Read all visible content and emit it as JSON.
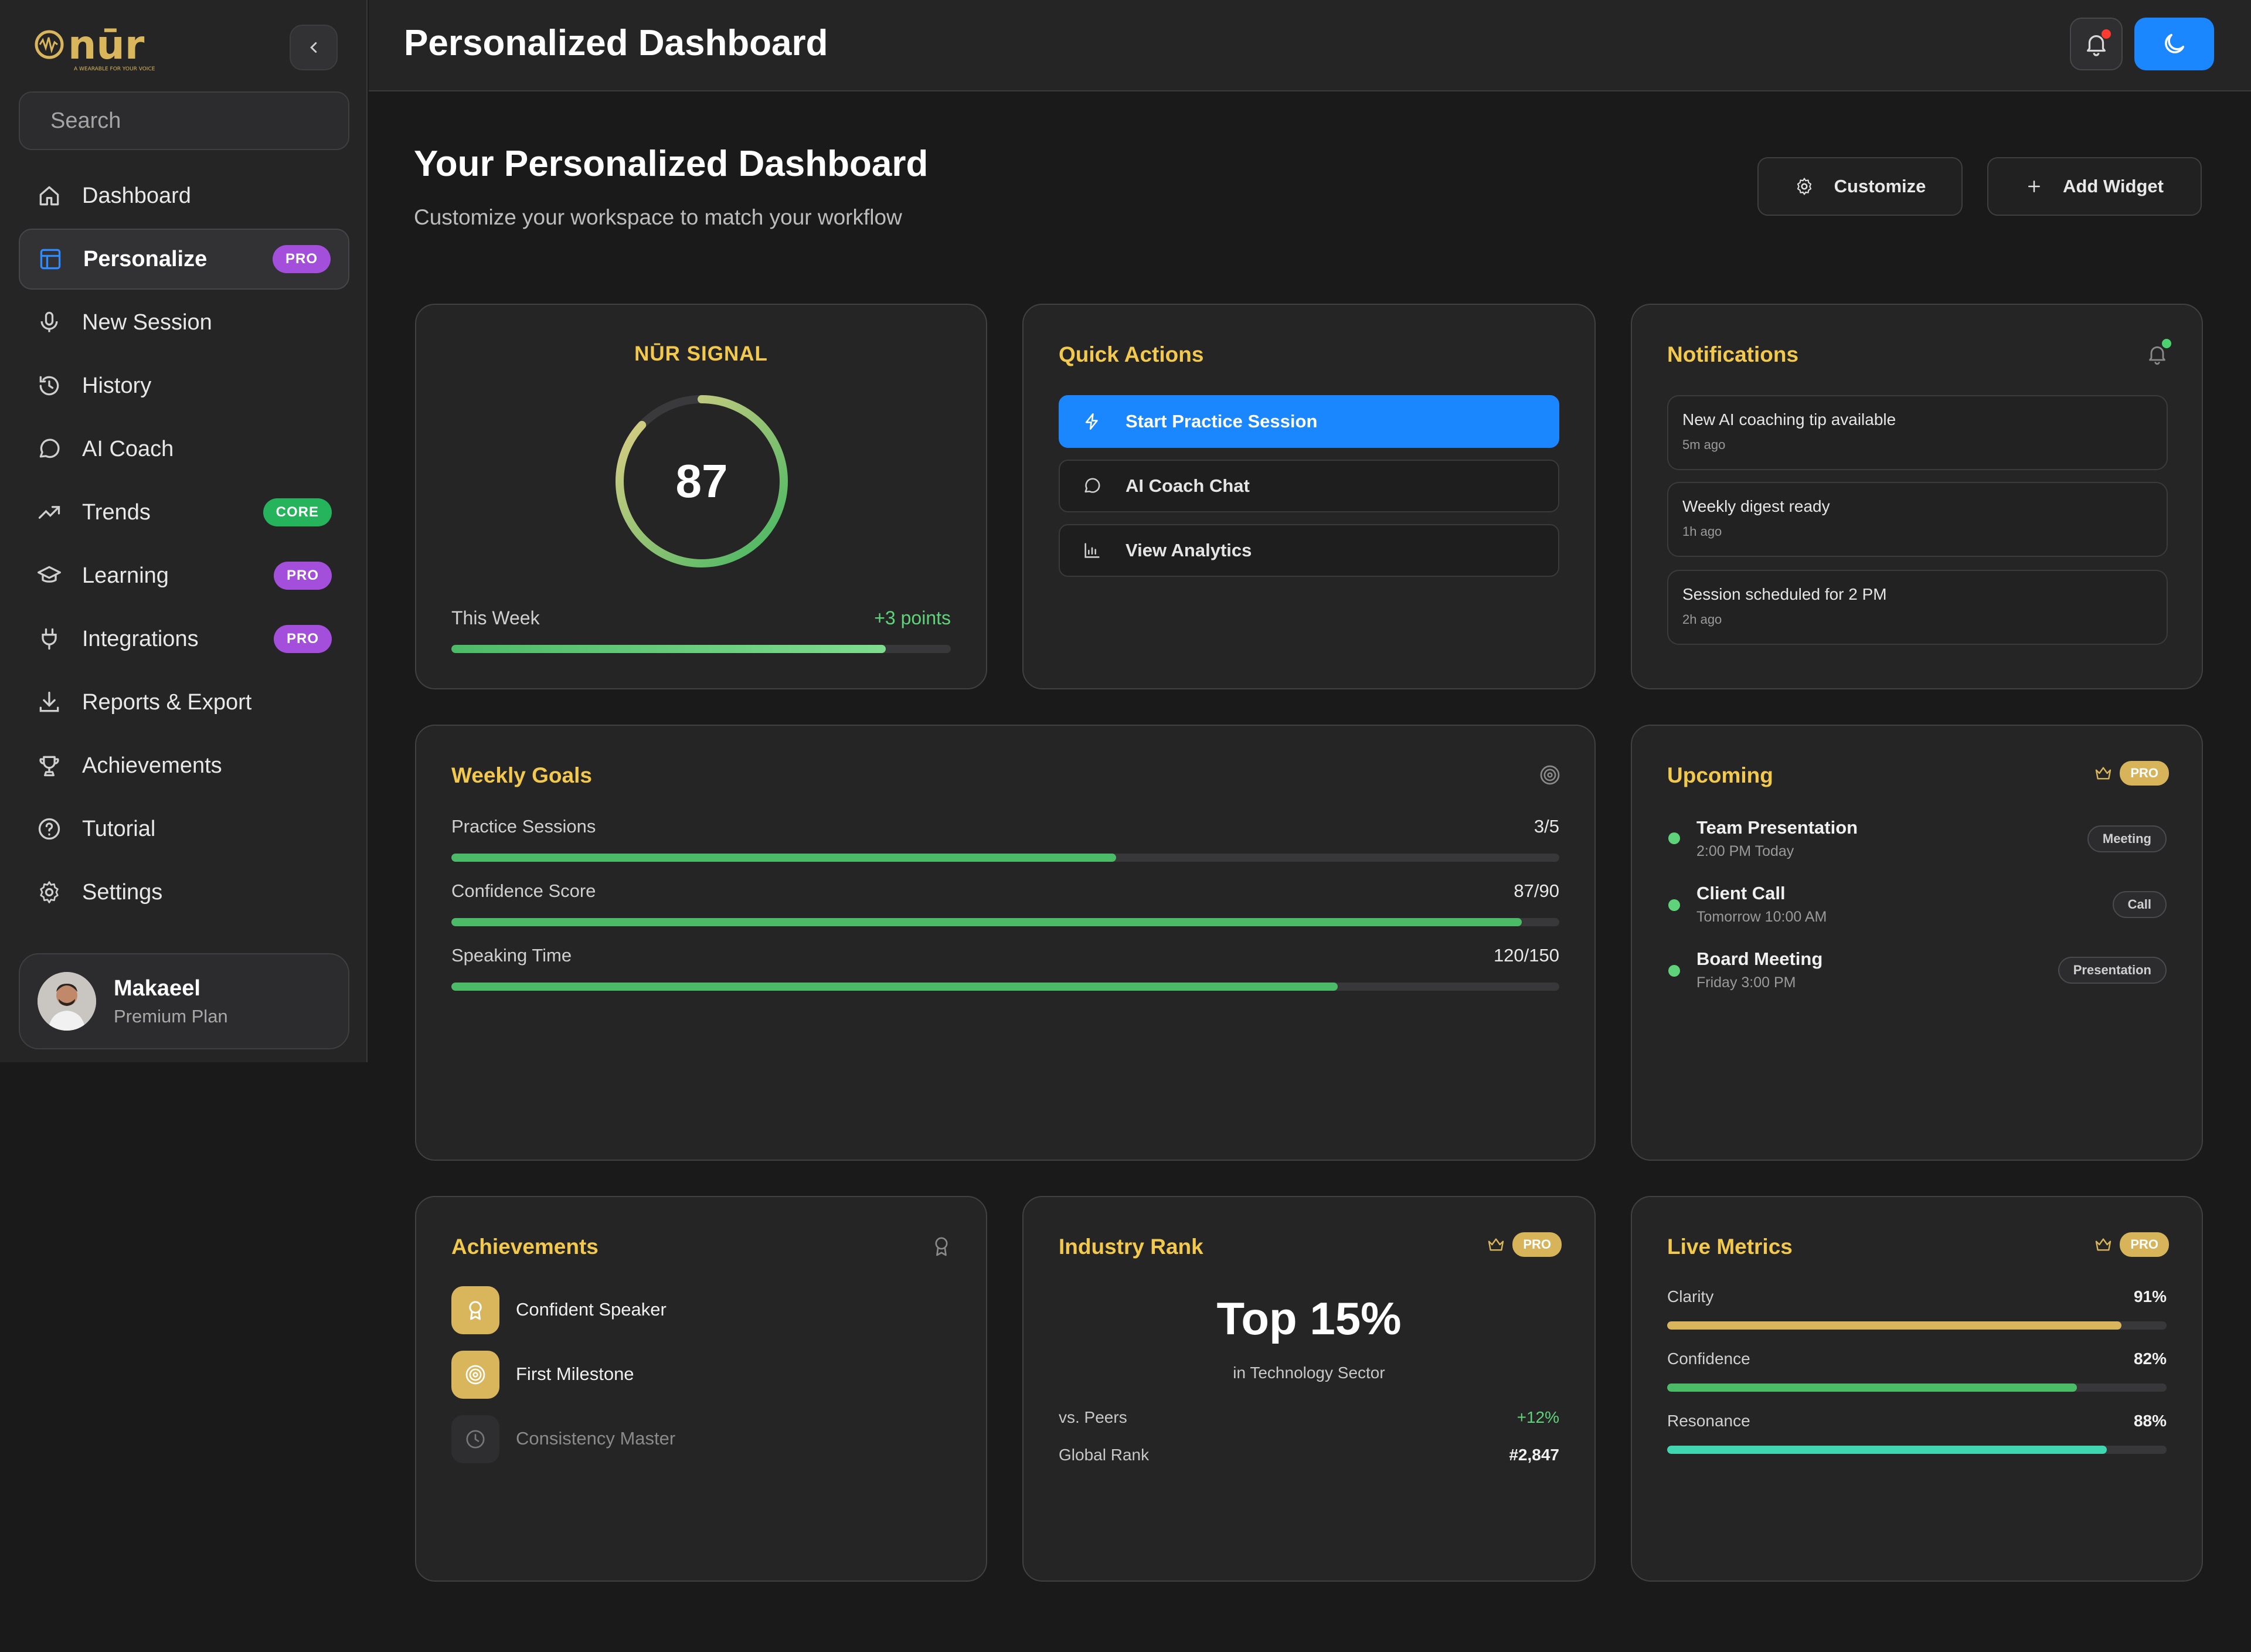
{
  "app": {
    "logo_text": "nūr",
    "logo_tagline": "A WEARABLE FOR YOUR VOICE"
  },
  "search": {
    "placeholder": "Search"
  },
  "sidebar": {
    "items": [
      {
        "label": "Dashboard",
        "icon": "home-icon",
        "badge": ""
      },
      {
        "label": "Personalize",
        "icon": "layout-icon",
        "badge": "PRO",
        "active": true
      },
      {
        "label": "New Session",
        "icon": "mic-icon",
        "badge": ""
      },
      {
        "label": "History",
        "icon": "history-icon",
        "badge": ""
      },
      {
        "label": "AI Coach",
        "icon": "chat-icon",
        "badge": ""
      },
      {
        "label": "Trends",
        "icon": "trend-icon",
        "badge": "CORE"
      },
      {
        "label": "Learning",
        "icon": "graduation-icon",
        "badge": "PRO"
      },
      {
        "label": "Integrations",
        "icon": "plug-icon",
        "badge": "PRO"
      },
      {
        "label": "Reports & Export",
        "icon": "download-icon",
        "badge": ""
      },
      {
        "label": "Achievements",
        "icon": "trophy-icon",
        "badge": ""
      },
      {
        "label": "Tutorial",
        "icon": "help-icon",
        "badge": ""
      },
      {
        "label": "Settings",
        "icon": "gear-icon",
        "badge": ""
      }
    ]
  },
  "profile": {
    "name": "Makaeel",
    "plan": "Premium Plan"
  },
  "topbar": {
    "title": "Personalized Dashboard"
  },
  "main": {
    "title": "Your Personalized Dashboard",
    "subtitle": "Customize your workspace to match your workflow",
    "customize_label": "Customize",
    "add_widget_label": "Add Widget"
  },
  "signal": {
    "title": "NŪR SIGNAL",
    "value": "87",
    "score": 87,
    "week_label": "This Week",
    "week_delta": "+3 points",
    "week_progress": 0.87
  },
  "quick_actions": {
    "title": "Quick Actions",
    "items": [
      {
        "label": "Start Practice Session",
        "icon": "bolt-icon"
      },
      {
        "label": "AI Coach Chat",
        "icon": "chat-icon"
      },
      {
        "label": "View Analytics",
        "icon": "bar-chart-icon"
      }
    ]
  },
  "notifications": {
    "title": "Notifications",
    "items": [
      {
        "title": "New AI coaching tip available",
        "time": "5m ago"
      },
      {
        "title": "Weekly digest ready",
        "time": "1h ago"
      },
      {
        "title": "Session scheduled for 2 PM",
        "time": "2h ago"
      }
    ]
  },
  "weekly_goals": {
    "title": "Weekly Goals",
    "items": [
      {
        "label": "Practice Sessions",
        "value": "3/5",
        "progress": 0.6,
        "color": "#4cbb68"
      },
      {
        "label": "Confidence Score",
        "value": "87/90",
        "progress": 0.966,
        "color": "#4cbb68"
      },
      {
        "label": "Speaking Time",
        "value": "120/150",
        "progress": 0.8,
        "color": "#4cbb68"
      }
    ]
  },
  "upcoming": {
    "title": "Upcoming",
    "badge": "PRO",
    "items": [
      {
        "title": "Team Presentation",
        "time": "2:00 PM Today",
        "tag": "Meeting"
      },
      {
        "title": "Client Call",
        "time": "Tomorrow 10:00 AM",
        "tag": "Call"
      },
      {
        "title": "Board Meeting",
        "time": "Friday 3:00 PM",
        "tag": "Presentation"
      }
    ]
  },
  "achievements": {
    "title": "Achievements",
    "items": [
      {
        "label": "Confident Speaker",
        "unlocked": true,
        "icon": "award-icon"
      },
      {
        "label": "First Milestone",
        "unlocked": true,
        "icon": "target-icon"
      },
      {
        "label": "Consistency Master",
        "unlocked": false,
        "icon": "clock-icon"
      }
    ]
  },
  "industry_rank": {
    "title": "Industry Rank",
    "badge": "PRO",
    "headline": "Top 15%",
    "sector": "in Technology Sector",
    "peers_label": "vs. Peers",
    "peers_value": "+12%",
    "global_label": "Global Rank",
    "global_value": "#2,847"
  },
  "live_metrics": {
    "title": "Live Metrics",
    "badge": "PRO",
    "items": [
      {
        "label": "Clarity",
        "value": "91%",
        "progress": 0.91,
        "color": "#d9b65b"
      },
      {
        "label": "Confidence",
        "value": "82%",
        "progress": 0.82,
        "color": "#4cbb68"
      },
      {
        "label": "Resonance",
        "value": "88%",
        "progress": 0.88,
        "color": "#3fd6b0"
      }
    ]
  },
  "colors": {
    "accent": "#1a86ff",
    "gold": "#f2c94c",
    "green": "#5fd37a",
    "pro": "#a44fdc",
    "core": "#25b35c"
  }
}
